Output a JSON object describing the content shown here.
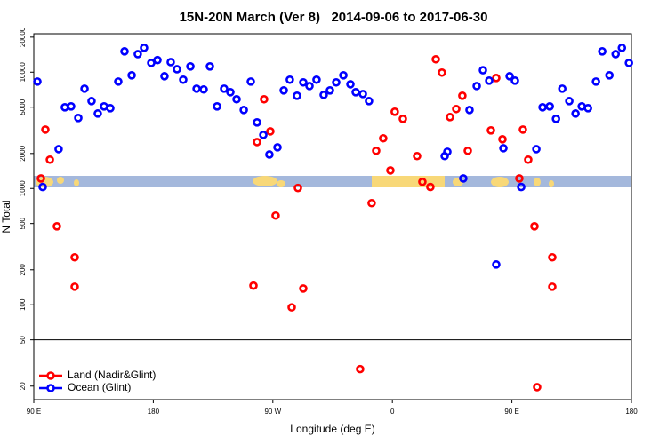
{
  "chart_data": {
    "type": "scatter",
    "title": "15N-20N March (Ver 8)   2014-09-06 to 2017-06-30",
    "x_label": "Longitude (deg E)",
    "y_label": "N Total",
    "xlim": [
      90,
      540
    ],
    "xticks": [
      {
        "value": 90,
        "label": "90 E"
      },
      180,
      {
        "value": 270,
        "label": "90 W"
      },
      {
        "value": 360,
        "label": "0"
      },
      {
        "value": 450,
        "label": "90 E"
      },
      {
        "value": 540,
        "label": "180"
      }
    ],
    "ylim": [
      15.3,
      21400
    ],
    "log_y": true,
    "yticks": [
      20,
      50,
      100,
      200,
      500,
      1000,
      2000,
      5000,
      10000,
      20000
    ],
    "hline": 50,
    "legend": "lower left",
    "series": [
      {
        "name": "Land (Nadir&Glint)",
        "color": "#ff0000",
        "x": [
          95.4,
          98.7,
          102.1,
          107.4,
          120.8,
          120.8,
          255.4,
          258.1,
          263.4,
          268.1,
          272.1,
          284.2,
          288.9,
          292.9,
          335.7,
          344.4,
          347.8,
          353.1,
          358.5,
          361.8,
          367.9,
          378.6,
          382.6,
          388.6,
          392.7,
          397.3,
          403.4,
          408.1,
          412.7,
          416.8,
          434.2,
          438.2,
          442.9,
          455.6,
          458.3,
          462.3,
          467.0,
          469.0,
          480.4,
          480.4
        ],
        "values": [
          1220,
          3210,
          1770,
          473,
          256,
          143,
          146,
          2510,
          5850,
          3100,
          585,
          95,
          1010,
          138,
          28,
          748,
          2110,
          2700,
          1430,
          4570,
          3970,
          1900,
          1140,
          1030,
          12900,
          9910,
          4110,
          4820,
          6270,
          2110,
          3160,
          8910,
          2650,
          1220,
          3210,
          1770,
          473,
          19.6,
          256,
          143
        ]
      },
      {
        "name": "Ocean (Glint)",
        "color": "#0000ff",
        "x": [
          92.7,
          96.7,
          108.7,
          113.4,
          118.1,
          123.5,
          128.2,
          133.5,
          138.2,
          142.9,
          147.6,
          153.6,
          158.3,
          163.7,
          168.3,
          173.0,
          178.4,
          183.1,
          188.4,
          193.1,
          197.8,
          202.5,
          207.9,
          212.6,
          217.9,
          222.6,
          228.0,
          233.3,
          238.0,
          242.7,
          248.1,
          253.4,
          258.1,
          262.8,
          267.4,
          273.5,
          278.2,
          282.8,
          288.2,
          292.9,
          297.6,
          302.9,
          308.3,
          313.0,
          317.7,
          323.1,
          328.4,
          332.4,
          337.8,
          342.4,
          399.4,
          401.4,
          413.4,
          418.1,
          423.5,
          428.2,
          432.9,
          438.2,
          443.6,
          448.3,
          452.3,
          457.0,
          468.4,
          473.1,
          478.5,
          483.2,
          487.9,
          493.2,
          497.9,
          502.6,
          507.3,
          513.3,
          518.0,
          523.4,
          528.1,
          532.8,
          538.1
        ],
        "values": [
          8300,
          1030,
          2180,
          4990,
          5080,
          4040,
          7210,
          5640,
          4410,
          5080,
          4900,
          8300,
          15100,
          9400,
          14300,
          16200,
          12000,
          12700,
          9230,
          12200,
          10600,
          8610,
          11200,
          7210,
          7100,
          11200,
          5080,
          7210,
          6730,
          5850,
          4730,
          8300,
          3700,
          2890,
          1960,
          2260,
          6970,
          8610,
          6270,
          8170,
          7600,
          8610,
          6380,
          6970,
          8170,
          9400,
          7870,
          6730,
          6490,
          5640,
          1900,
          2070,
          1220,
          4730,
          7600,
          10400,
          8450,
          222,
          2220,
          9230,
          8450,
          1030,
          2180,
          4990,
          5080,
          3970,
          7210,
          5640,
          4410,
          5080,
          4900,
          8300,
          15100,
          9400,
          14300,
          16200,
          12000
        ]
      }
    ]
  }
}
